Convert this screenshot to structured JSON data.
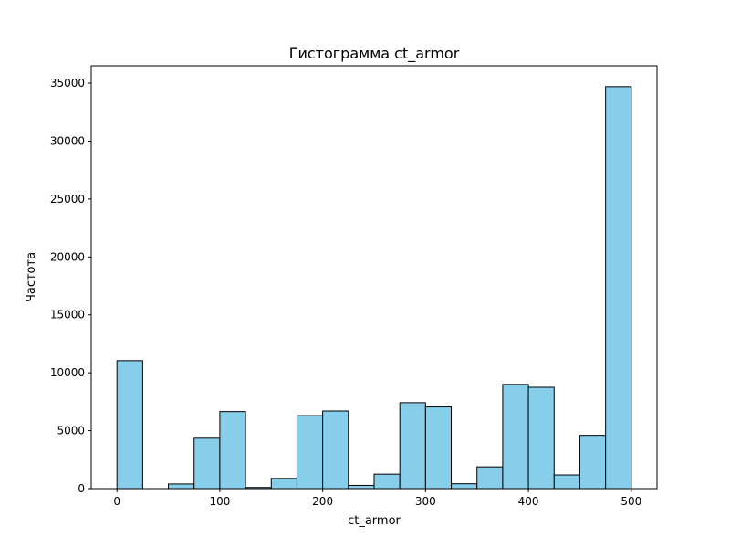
{
  "chart_data": {
    "type": "bar",
    "title": "Гистограмма ct_armor",
    "xlabel": "ct_armor",
    "ylabel": "Частота",
    "bar_color": "#87ceeb",
    "edge_color": "#000000",
    "bin_width": 25,
    "bins": [
      {
        "start": 0,
        "end": 25,
        "value": 11050
      },
      {
        "start": 25,
        "end": 50,
        "value": 0
      },
      {
        "start": 50,
        "end": 75,
        "value": 400
      },
      {
        "start": 75,
        "end": 100,
        "value": 4350
      },
      {
        "start": 100,
        "end": 125,
        "value": 6650
      },
      {
        "start": 125,
        "end": 150,
        "value": 100
      },
      {
        "start": 150,
        "end": 175,
        "value": 880
      },
      {
        "start": 175,
        "end": 200,
        "value": 6300
      },
      {
        "start": 200,
        "end": 225,
        "value": 6700
      },
      {
        "start": 225,
        "end": 250,
        "value": 280
      },
      {
        "start": 250,
        "end": 275,
        "value": 1250
      },
      {
        "start": 275,
        "end": 300,
        "value": 7420
      },
      {
        "start": 300,
        "end": 325,
        "value": 7050
      },
      {
        "start": 325,
        "end": 350,
        "value": 420
      },
      {
        "start": 350,
        "end": 375,
        "value": 1880
      },
      {
        "start": 375,
        "end": 400,
        "value": 9000
      },
      {
        "start": 400,
        "end": 425,
        "value": 8750
      },
      {
        "start": 425,
        "end": 450,
        "value": 1180
      },
      {
        "start": 450,
        "end": 475,
        "value": 4600
      },
      {
        "start": 475,
        "end": 500,
        "value": 34700
      }
    ],
    "xlim": [
      -25,
      525
    ],
    "ylim": [
      0,
      36500
    ],
    "x_ticks": [
      {
        "value": 0,
        "label": "0"
      },
      {
        "value": 100,
        "label": "100"
      },
      {
        "value": 200,
        "label": "200"
      },
      {
        "value": 300,
        "label": "300"
      },
      {
        "value": 400,
        "label": "400"
      },
      {
        "value": 500,
        "label": "500"
      }
    ],
    "y_ticks": [
      {
        "value": 0,
        "label": "0"
      },
      {
        "value": 5000,
        "label": "5000"
      },
      {
        "value": 10000,
        "label": "10000"
      },
      {
        "value": 15000,
        "label": "15000"
      },
      {
        "value": 20000,
        "label": "20000"
      },
      {
        "value": 25000,
        "label": "25000"
      },
      {
        "value": 30000,
        "label": "30000"
      },
      {
        "value": 35000,
        "label": "35000"
      }
    ],
    "grid": false,
    "legend": "none"
  }
}
